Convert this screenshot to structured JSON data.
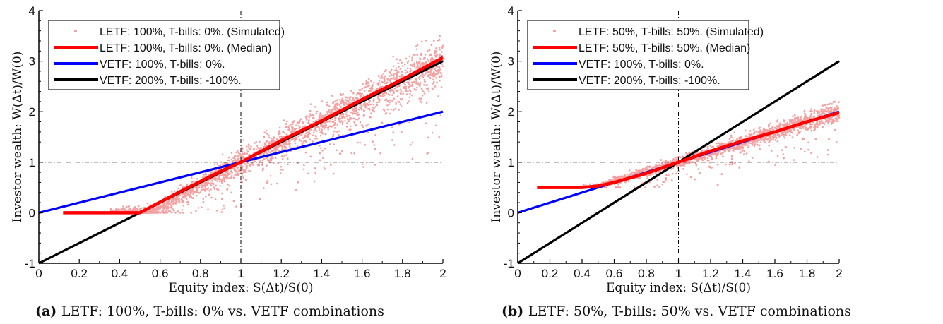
{
  "chart_data": [
    {
      "type": "scatter",
      "panel_label": "(a)",
      "caption": "LETF: 100%, T-bills: 0% vs. VETF combinations",
      "xlabel": "Equity index: S(Δt)/S(0)",
      "ylabel": "Investor wealth: W(Δt)/W(0)",
      "xlim": [
        0,
        2
      ],
      "ylim": [
        -1,
        4
      ],
      "xticks": [
        "0",
        "0.2",
        "0.4",
        "0.6",
        "0.8",
        "1",
        "1.2",
        "1.4",
        "1.6",
        "1.8",
        "2"
      ],
      "yticks": [
        "-1",
        "0",
        "1",
        "2",
        "3",
        "4"
      ],
      "reference_lines": {
        "x": 1,
        "y": 1,
        "style": "dash-dot"
      },
      "legend_position": "top-left",
      "series": [
        {
          "name": "LETF: 100%, T-bills: 0%. (Simulated)",
          "kind": "scatter",
          "color": "#f4a0a0",
          "floor": 0,
          "lev": 2,
          "spread": 0.35
        },
        {
          "name": "LETF: 100%, T-bills: 0%. (Median)",
          "kind": "line",
          "color": "#ff0000",
          "x": [
            0.12,
            0.5,
            0.7,
            0.9,
            1.0,
            1.2,
            1.4,
            1.6,
            1.8,
            2.0
          ],
          "y": [
            0.0,
            0.0,
            0.42,
            0.82,
            1.0,
            1.43,
            1.82,
            2.24,
            2.64,
            3.07
          ]
        },
        {
          "name": "VETF: 100%, T-bills: 0%.",
          "kind": "line",
          "color": "#0000ff",
          "x": [
            0,
            2
          ],
          "y": [
            0,
            2
          ]
        },
        {
          "name": "VETF: 200%, T-bills: -100%.",
          "kind": "line",
          "color": "#000000",
          "x": [
            0,
            2
          ],
          "y": [
            -1,
            3
          ]
        }
      ]
    },
    {
      "type": "scatter",
      "panel_label": "(b)",
      "caption": "LETF: 50%, T-bills: 50% vs. VETF combinations",
      "xlabel": "Equity index: S(Δt)/S(0)",
      "ylabel": "Investor wealth: W(Δt)/W(0)",
      "xlim": [
        0,
        2
      ],
      "ylim": [
        -1,
        4
      ],
      "xticks": [
        "0",
        "0.2",
        "0.4",
        "0.6",
        "0.8",
        "1",
        "1.2",
        "1.4",
        "1.6",
        "1.8",
        "2"
      ],
      "yticks": [
        "-1",
        "0",
        "1",
        "2",
        "3",
        "4"
      ],
      "reference_lines": {
        "x": 1,
        "y": 1,
        "style": "dash-dot"
      },
      "legend_position": "top-left",
      "series": [
        {
          "name": "LETF: 50%, T-bills: 50%. (Simulated)",
          "kind": "scatter",
          "color": "#f4a0a0",
          "floor": 0.5,
          "lev": 1,
          "spread": 0.15
        },
        {
          "name": "LETF: 50%, T-bills: 50%. (Median)",
          "kind": "line",
          "color": "#ff0000",
          "x": [
            0.12,
            0.4,
            0.5,
            0.6,
            0.8,
            1.0,
            1.2,
            1.4,
            1.6,
            1.8,
            2.0
          ],
          "y": [
            0.5,
            0.5,
            0.53,
            0.6,
            0.78,
            1.0,
            1.22,
            1.42,
            1.6,
            1.8,
            1.98
          ]
        },
        {
          "name": "VETF: 100%, T-bills: 0%.",
          "kind": "line",
          "color": "#0000ff",
          "x": [
            0,
            2
          ],
          "y": [
            0,
            2
          ]
        },
        {
          "name": "VETF: 200%, T-bills: -100%.",
          "kind": "line",
          "color": "#000000",
          "x": [
            0,
            2
          ],
          "y": [
            -1,
            3
          ]
        }
      ]
    }
  ]
}
